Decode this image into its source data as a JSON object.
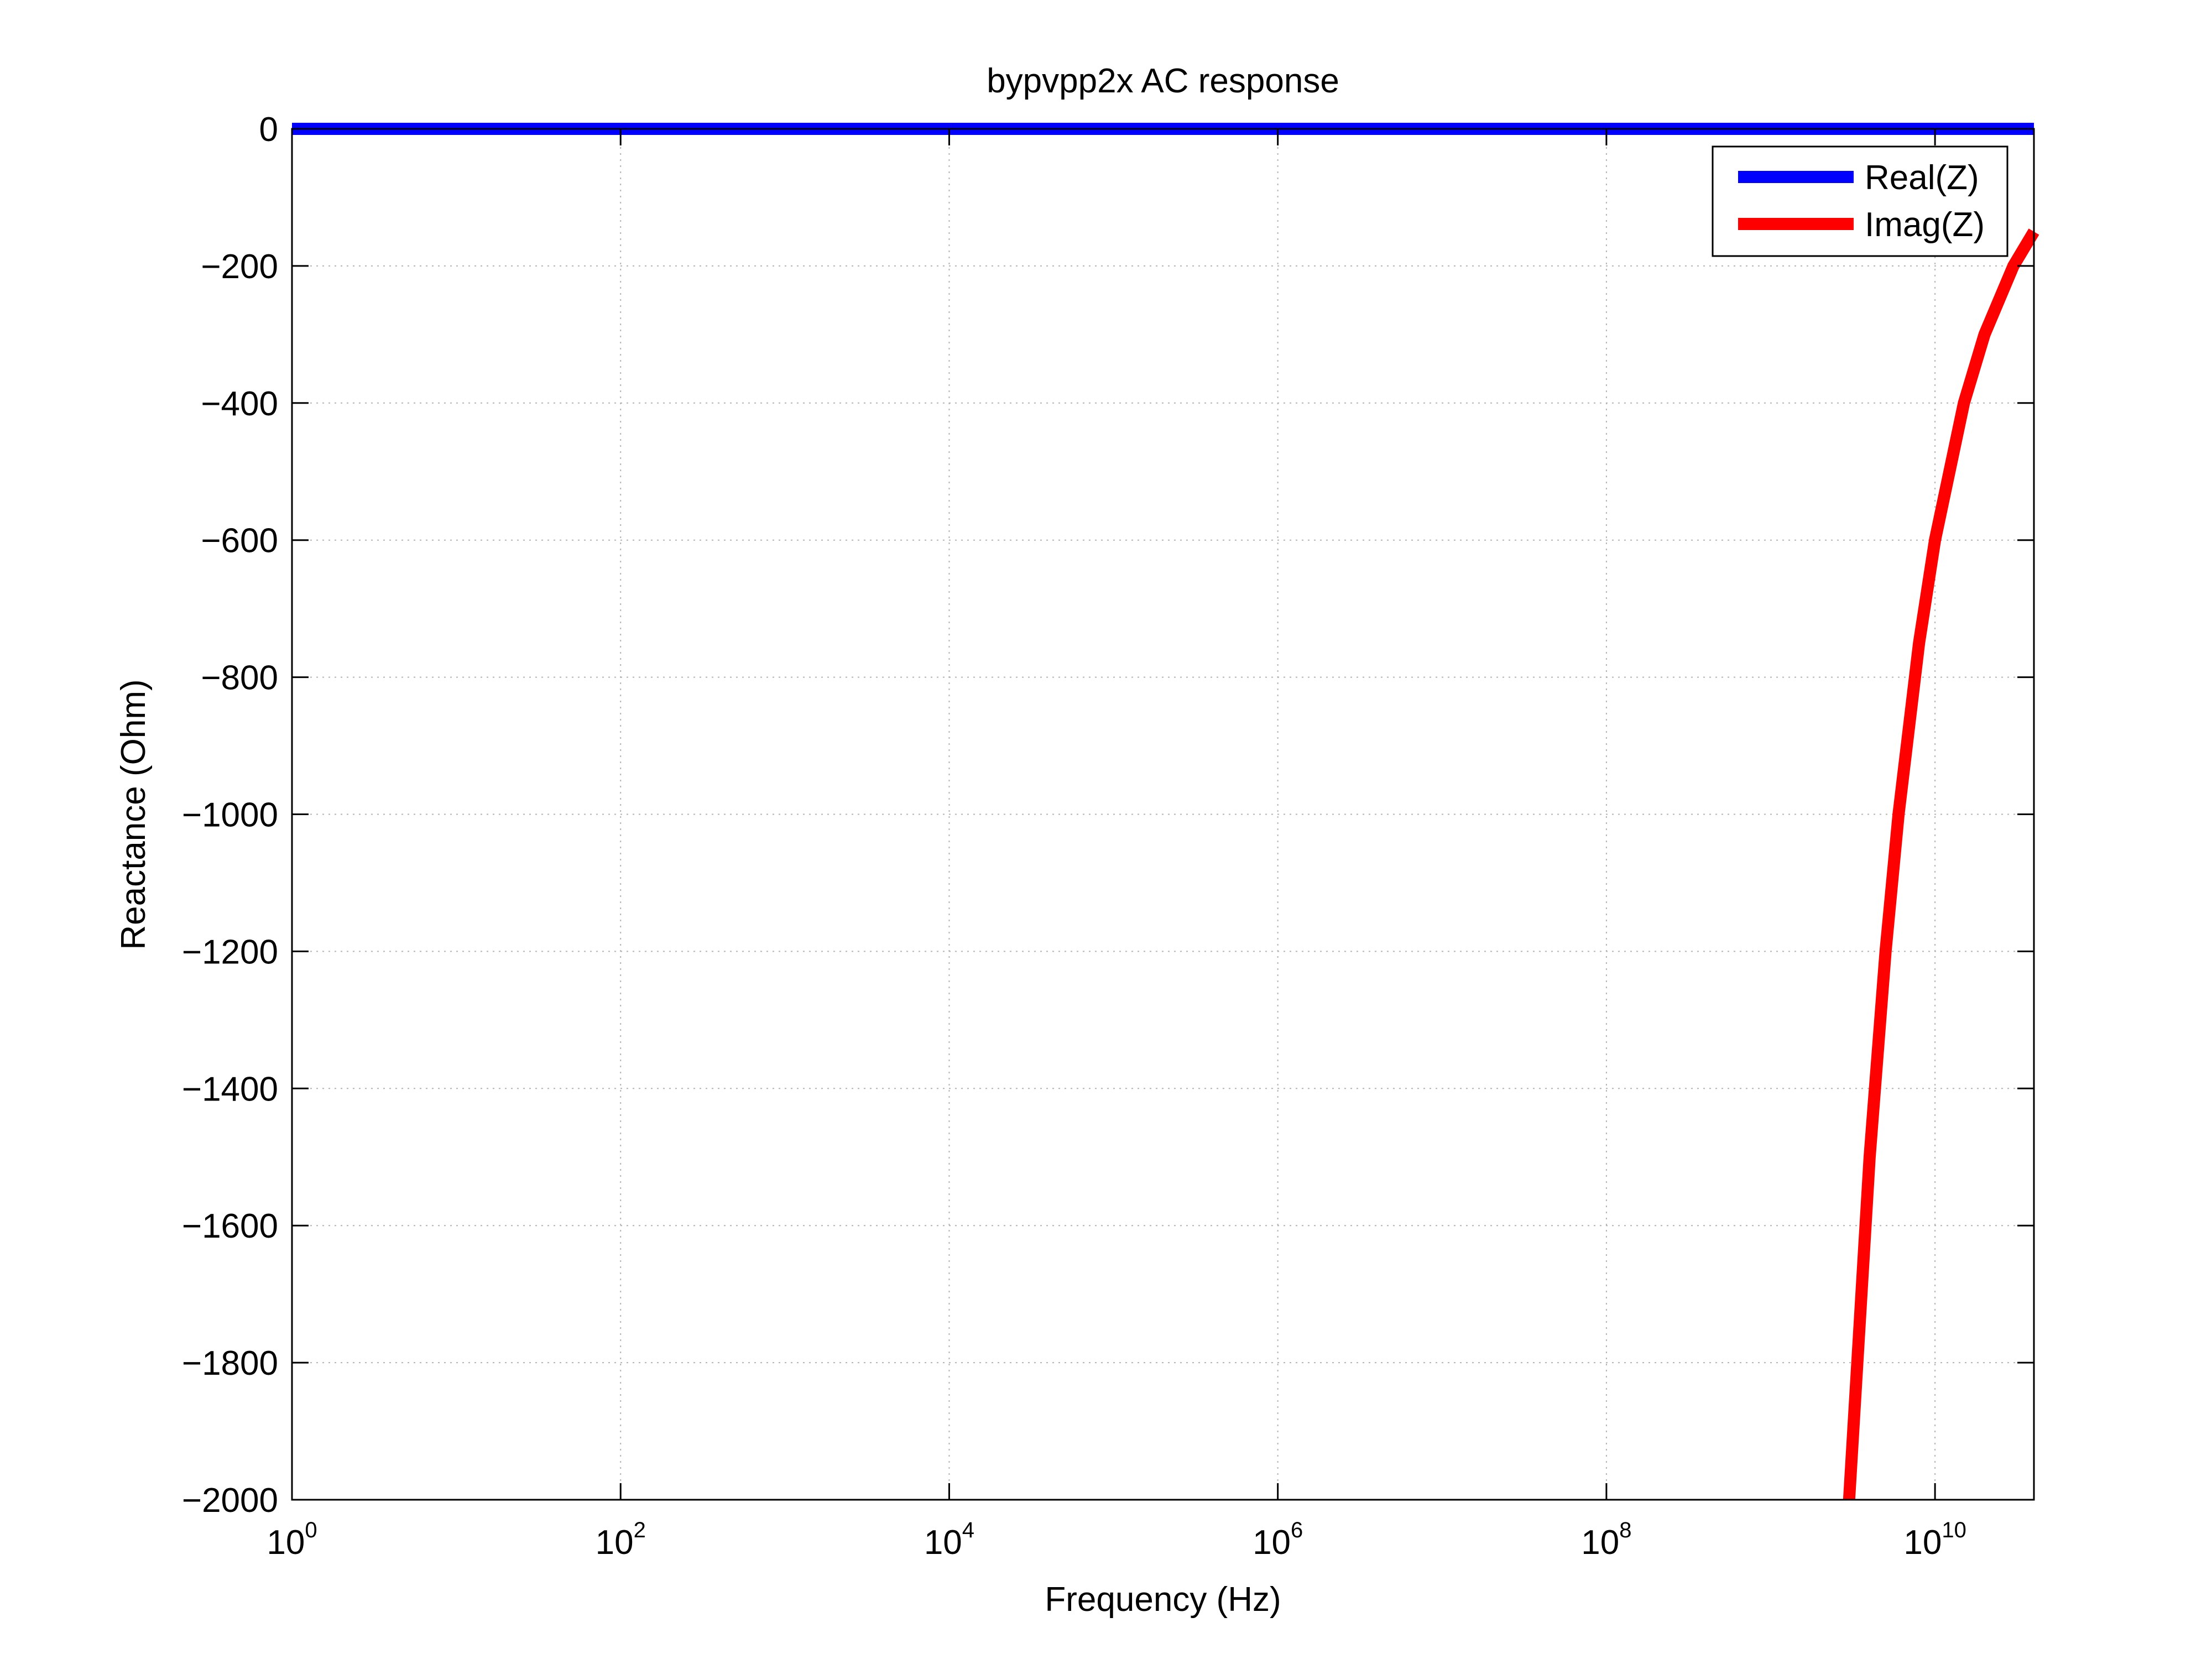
{
  "chart_data": {
    "type": "line",
    "title": "bypvpp2x AC response",
    "xlabel": "Frequency (Hz)",
    "ylabel": "Reactance (Ohm)",
    "x_scale": "log",
    "xlim": [
      1,
      40000000000
    ],
    "ylim": [
      -2000,
      0
    ],
    "grid": true,
    "legend_position": "top-right",
    "x_ticks": [
      {
        "value": 1,
        "base": "10",
        "exp": "0"
      },
      {
        "value": 100,
        "base": "10",
        "exp": "2"
      },
      {
        "value": 10000,
        "base": "10",
        "exp": "4"
      },
      {
        "value": 1000000,
        "base": "10",
        "exp": "6"
      },
      {
        "value": 100000000,
        "base": "10",
        "exp": "8"
      },
      {
        "value": 10000000000,
        "base": "10",
        "exp": "10"
      }
    ],
    "y_ticks": [
      {
        "value": 0,
        "label": "0"
      },
      {
        "value": -200,
        "label": "−200"
      },
      {
        "value": -400,
        "label": "−400"
      },
      {
        "value": -600,
        "label": "−600"
      },
      {
        "value": -800,
        "label": "−800"
      },
      {
        "value": -1000,
        "label": "−1000"
      },
      {
        "value": -1200,
        "label": "−1200"
      },
      {
        "value": -1400,
        "label": "−1400"
      },
      {
        "value": -1600,
        "label": "−1600"
      },
      {
        "value": -1800,
        "label": "−1800"
      },
      {
        "value": -2000,
        "label": "−2000"
      }
    ],
    "series": [
      {
        "name": "Real(Z)",
        "color": "#0000ff",
        "x": [
          1,
          100,
          10000,
          1000000,
          100000000,
          10000000000,
          40000000000
        ],
        "y": [
          0,
          0,
          0,
          0,
          0,
          0,
          0
        ]
      },
      {
        "name": "Imag(Z)",
        "color": "#ff0000",
        "x": [
          3000000000,
          4000000000,
          5000000000,
          6000000000,
          8000000000,
          10000000000,
          15000000000,
          20000000000,
          30000000000,
          40000000000
        ],
        "y": [
          -2000,
          -1500,
          -1200,
          -1000,
          -750,
          -600,
          -400,
          -300,
          -200,
          -150
        ]
      }
    ]
  }
}
